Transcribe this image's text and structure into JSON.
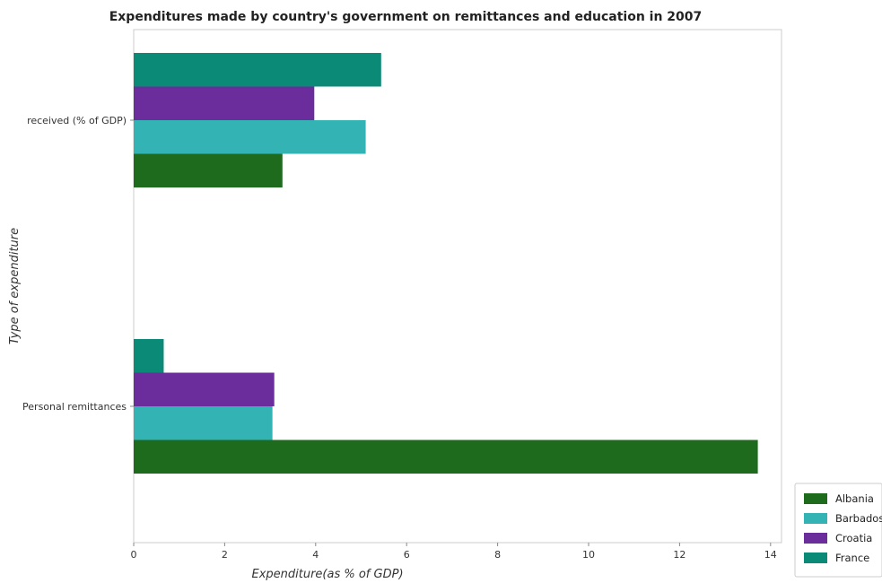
{
  "chart_data": {
    "type": "bar",
    "orientation": "horizontal",
    "title": "Expenditures made by country's government on remittances and education in 2007",
    "xlabel": "Expenditure(as % of GDP)",
    "ylabel": "Type of expenditure",
    "categories": [
      "Personal remittances",
      " received (% of GDP)"
    ],
    "xlim": [
      0,
      14.2
    ],
    "xticks": [
      0,
      2,
      4,
      6,
      8,
      10,
      12,
      14
    ],
    "grid": false,
    "legend_position": "bottom-right",
    "series": [
      {
        "name": "Albania",
        "color": "#1e6b1e",
        "values": [
          13.72,
          3.27
        ]
      },
      {
        "name": "Barbados",
        "color": "#34b3b5",
        "values": [
          3.05,
          5.1
        ]
      },
      {
        "name": "Croatia",
        "color": "#6b2c9c",
        "values": [
          3.09,
          3.97
        ]
      },
      {
        "name": "France",
        "color": "#0b8a78",
        "values": [
          0.66,
          5.44
        ]
      }
    ]
  }
}
